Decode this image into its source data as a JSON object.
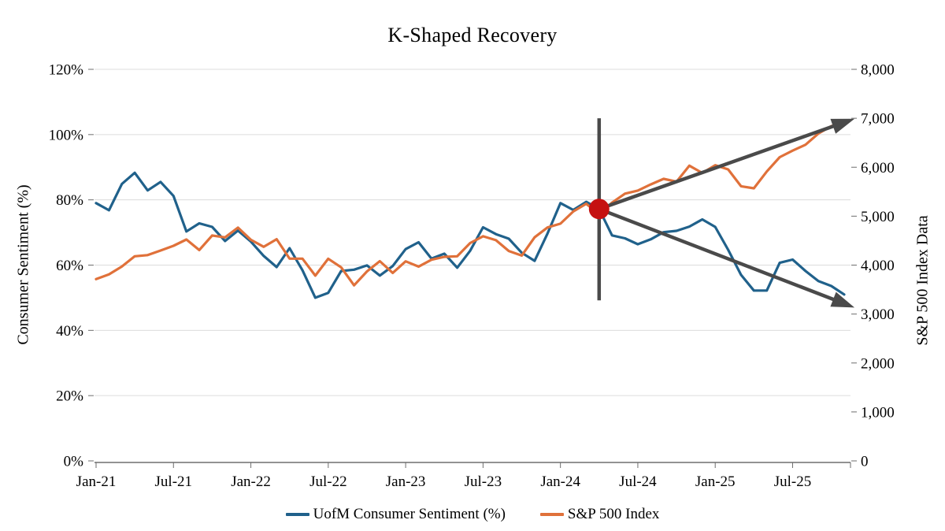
{
  "chart_data": {
    "type": "line",
    "title": "K-Shaped Recovery",
    "x": {
      "months": [
        "Jan-21",
        "Feb-21",
        "Mar-21",
        "Apr-21",
        "May-21",
        "Jun-21",
        "Jul-21",
        "Aug-21",
        "Sep-21",
        "Oct-21",
        "Nov-21",
        "Dec-21",
        "Jan-22",
        "Feb-22",
        "Mar-22",
        "Apr-22",
        "May-22",
        "Jun-22",
        "Jul-22",
        "Aug-22",
        "Sep-22",
        "Oct-22",
        "Nov-22",
        "Dec-22",
        "Jan-23",
        "Feb-23",
        "Mar-23",
        "Apr-23",
        "May-23",
        "Jun-23",
        "Jul-23",
        "Aug-23",
        "Sep-23",
        "Oct-23",
        "Nov-23",
        "Dec-23",
        "Jan-24",
        "Feb-24",
        "Mar-24",
        "Apr-24",
        "May-24",
        "Jun-24",
        "Jul-24",
        "Aug-24",
        "Sep-24",
        "Oct-24",
        "Nov-24",
        "Dec-24",
        "Jan-25",
        "Feb-25",
        "Mar-25",
        "Apr-25",
        "May-25",
        "Jun-25",
        "Jul-25",
        "Aug-25",
        "Sep-25",
        "Oct-25",
        "Nov-25"
      ],
      "tick_every": 6,
      "tick_labels": [
        "Jan-21",
        "Jul-21",
        "Jan-22",
        "Jul-22",
        "Jan-23",
        "Jul-23",
        "Jan-24",
        "Jul-24",
        "Jan-25",
        "Jul-25"
      ]
    },
    "left_axis": {
      "title": "Consumer Sentiment (%)",
      "min": 0,
      "max": 120,
      "step": 20,
      "tick_labels": [
        "0%",
        "20%",
        "40%",
        "60%",
        "80%",
        "100%",
        "120%"
      ]
    },
    "right_axis": {
      "title": "S&P 500 Index Data",
      "min": 0,
      "max": 8000,
      "step": 1000,
      "tick_labels": [
        "0",
        "1,000",
        "2,000",
        "3,000",
        "4,000",
        "5,000",
        "6,000",
        "7,000",
        "8,000"
      ]
    },
    "series": [
      {
        "name": "UofM Consumer Sentiment (%)",
        "axis": "left",
        "color": "#20618B",
        "values": [
          79.0,
          76.8,
          84.9,
          88.3,
          82.9,
          85.5,
          81.2,
          70.3,
          72.8,
          71.7,
          67.4,
          70.6,
          67.2,
          62.8,
          59.4,
          65.2,
          58.4,
          50.0,
          51.5,
          58.2,
          58.6,
          59.9,
          56.8,
          59.7,
          64.9,
          67.0,
          62.0,
          63.5,
          59.2,
          64.4,
          71.6,
          69.5,
          68.1,
          63.8,
          61.3,
          69.7,
          79.0,
          76.9,
          79.4,
          77.2,
          69.1,
          68.2,
          66.4,
          67.9,
          70.1,
          70.5,
          71.8,
          74.0,
          71.7,
          64.7,
          57.0,
          52.2,
          52.2,
          60.7,
          61.7,
          58.2,
          55.1,
          53.6,
          51.0
        ]
      },
      {
        "name": "S&P 500 Index",
        "axis": "right",
        "color": "#E0713A",
        "values": [
          3714,
          3811,
          3973,
          4181,
          4204,
          4298,
          4395,
          4523,
          4308,
          4605,
          4567,
          4766,
          4516,
          4374,
          4530,
          4132,
          4132,
          3785,
          4130,
          3955,
          3586,
          3872,
          4080,
          3840,
          4077,
          3970,
          4109,
          4169,
          4180,
          4450,
          4589,
          4508,
          4288,
          4194,
          4568,
          4770,
          4846,
          5096,
          5254,
          5036,
          5277,
          5460,
          5522,
          5648,
          5762,
          5705,
          6032,
          5882,
          6041,
          5955,
          5612,
          5569,
          5912,
          6205,
          6339,
          6460,
          6688,
          6840,
          6900
        ]
      }
    ],
    "annotations": {
      "divergence_month": "Apr-24",
      "vline": {
        "index": 39,
        "from_pct": 49.2,
        "to_pct": 105.0,
        "color": "#4A4A4A"
      },
      "dot": {
        "index": 39,
        "pct": 77.2,
        "color": "#C51111"
      },
      "arrows": [
        {
          "name": "k-upper-arrow",
          "from": {
            "index": 39,
            "pct": 77.2
          },
          "to": {
            "index": 58.4,
            "pct": 104.3
          },
          "color": "#4A4A4A"
        },
        {
          "name": "k-lower-arrow",
          "from": {
            "index": 39,
            "pct": 77.2
          },
          "to": {
            "index": 58.4,
            "pct": 47.6
          },
          "color": "#4A4A4A"
        }
      ]
    },
    "grid_color": "#DCDCDC",
    "axis_line_color": "#6E6E6E",
    "legend_position": "bottom"
  }
}
